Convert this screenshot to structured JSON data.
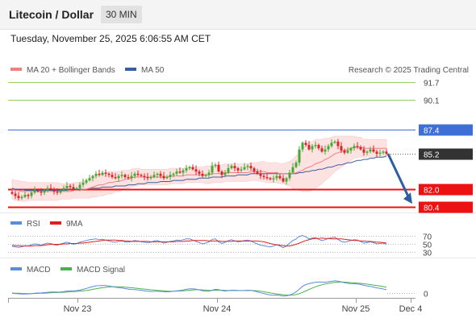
{
  "header": {
    "title": "Litecoin / Dollar",
    "timeframe": "30 MIN"
  },
  "timestamp": "Tuesday, November 25, 2025 6:06:55 AM CET",
  "legend": {
    "ma20": "MA 20 + Bollinger Bands",
    "ma50": "MA 50",
    "credit": "Research © 2025 Trading Central"
  },
  "colors": {
    "up": "#46a935",
    "down": "#d8252a",
    "ma20": "#f08080",
    "ma50": "#3a5fa0",
    "band": "#fde2e2",
    "green_level": "#9ccc65",
    "blue_level": "#3d6fd6",
    "red_level": "#ee1111",
    "arrow": "#2d5f9e",
    "rsi": "#5b8ddb",
    "rsi_ma": "#e02020",
    "macd": "#5b8ddb",
    "macd_signal": "#4caf50"
  },
  "chart_data": [
    {
      "type": "candlestick",
      "title": "Litecoin / Dollar",
      "interval": "30 MIN",
      "ylim": [
        79.9,
        92.4
      ],
      "x_ticks": [
        "Nov 23",
        "Nov 24",
        "Nov 25",
        "Dec 4"
      ],
      "levels": [
        {
          "value": "91.7",
          "kind": "resistance",
          "color": "#9ccc65"
        },
        {
          "value": "90.1",
          "kind": "resistance",
          "color": "#9ccc65"
        },
        {
          "value": "87.4",
          "kind": "resistance",
          "color": "#3d6fd6"
        },
        {
          "value": "85.2",
          "kind": "last",
          "color": "#333333"
        },
        {
          "value": "82.0",
          "kind": "support",
          "color": "#ee1111"
        },
        {
          "value": "80.4",
          "kind": "support",
          "color": "#ee1111"
        }
      ],
      "series": [
        {
          "name": "MA 20 + Bollinger Bands"
        },
        {
          "name": "MA 50"
        }
      ],
      "close": [
        81.6,
        81.4,
        81.2,
        81.3,
        81.5,
        81.4,
        81.7,
        81.9,
        81.8,
        81.7,
        81.9,
        82.1,
        82.0,
        81.8,
        81.7,
        81.9,
        82.1,
        82.3,
        82.2,
        82.0,
        82.1,
        82.4,
        82.6,
        82.8,
        83.0,
        83.2,
        83.4,
        83.3,
        83.5,
        83.4,
        83.3,
        83.1,
        83.0,
        83.2,
        83.3,
        83.1,
        83.0,
        83.2,
        83.4,
        83.3,
        83.2,
        83.1,
        83.0,
        83.1,
        83.3,
        83.4,
        83.2,
        83.0,
        83.1,
        83.3,
        83.4,
        83.6,
        83.5,
        83.7,
        83.9,
        84.0,
        83.8,
        83.6,
        83.4,
        83.2,
        83.3,
        83.5,
        84.1,
        84.2,
        83.6,
        83.3,
        83.5,
        83.9,
        84.1,
        83.9,
        83.7,
        83.8,
        84.0,
        84.1,
        83.9,
        83.6,
        83.4,
        83.2,
        83.1,
        83.0,
        82.9,
        83.0,
        83.2,
        83.0,
        82.7,
        83.0,
        83.5,
        84.0,
        84.4,
        85.6,
        86.2,
        86.0,
        85.6,
        85.9,
        86.0,
        85.7,
        85.4,
        85.6,
        85.9,
        86.2,
        86.3,
        85.9,
        85.5,
        85.3,
        85.5,
        85.7,
        85.9,
        85.8,
        85.6,
        85.3,
        85.4,
        85.6,
        85.4,
        85.2,
        85.3,
        85.4,
        85.2
      ],
      "ma20": [
        82.0,
        81.9,
        81.9,
        81.8,
        81.8,
        81.8,
        81.8,
        81.8,
        81.8,
        81.8,
        81.8,
        81.8,
        81.8,
        81.8,
        81.8,
        81.8,
        81.8,
        81.8,
        81.8,
        81.9,
        81.9,
        81.9,
        82.0,
        82.0,
        82.1,
        82.2,
        82.3,
        82.4,
        82.4,
        82.5,
        82.6,
        82.6,
        82.7,
        82.7,
        82.8,
        82.9,
        82.9,
        83.0,
        83.1,
        83.1,
        83.1,
        83.1,
        83.1,
        83.1,
        83.1,
        83.1,
        83.1,
        83.1,
        83.1,
        83.2,
        83.2,
        83.2,
        83.2,
        83.2,
        83.3,
        83.3,
        83.3,
        83.3,
        83.3,
        83.3,
        83.3,
        83.3,
        83.4,
        83.4,
        83.4,
        83.4,
        83.5,
        83.5,
        83.5,
        83.5,
        83.5,
        83.5,
        83.5,
        83.5,
        83.6,
        83.6,
        83.6,
        83.6,
        83.6,
        83.5,
        83.5,
        83.5,
        83.5,
        83.4,
        83.4,
        83.4,
        83.4,
        83.4,
        83.5,
        83.6,
        83.7,
        83.9,
        84.0,
        84.1,
        84.3,
        84.4,
        84.5,
        84.7,
        84.8,
        85.0,
        85.2,
        85.3,
        85.4,
        85.5,
        85.6,
        85.7,
        85.8,
        85.8,
        85.8,
        85.7,
        85.7,
        85.7,
        85.7,
        85.7,
        85.7,
        85.7,
        85.7
      ],
      "ma50": [
        82.1,
        82.0,
        82.0,
        82.0,
        81.9,
        81.9,
        81.9,
        81.9,
        81.9,
        81.9,
        81.9,
        81.9,
        81.9,
        81.9,
        81.9,
        81.9,
        81.9,
        81.9,
        82.0,
        82.0,
        82.0,
        82.0,
        82.0,
        82.0,
        82.1,
        82.1,
        82.1,
        82.1,
        82.2,
        82.2,
        82.2,
        82.2,
        82.3,
        82.3,
        82.3,
        82.3,
        82.4,
        82.4,
        82.4,
        82.5,
        82.5,
        82.5,
        82.6,
        82.6,
        82.6,
        82.6,
        82.7,
        82.7,
        82.7,
        82.7,
        82.8,
        82.8,
        82.8,
        82.8,
        82.9,
        82.9,
        82.9,
        82.9,
        83.0,
        83.0,
        83.0,
        83.0,
        83.1,
        83.1,
        83.1,
        83.1,
        83.2,
        83.2,
        83.2,
        83.2,
        83.3,
        83.3,
        83.3,
        83.3,
        83.4,
        83.4,
        83.4,
        83.4,
        83.4,
        83.4,
        83.4,
        83.4,
        83.4,
        83.4,
        83.4,
        83.4,
        83.4,
        83.4,
        83.4,
        83.5,
        83.5,
        83.6,
        83.6,
        83.7,
        83.7,
        83.8,
        83.8,
        83.9,
        84.0,
        84.0,
        84.1,
        84.2,
        84.2,
        84.3,
        84.4,
        84.4,
        84.5,
        84.6,
        84.6,
        84.7,
        84.7,
        84.8,
        84.8,
        84.9,
        84.9,
        84.9,
        85.0
      ],
      "bb_width": [
        0.9,
        0.9,
        0.9,
        0.9,
        0.9,
        0.8,
        0.8,
        0.8,
        0.8,
        0.8,
        0.8,
        0.8,
        0.8,
        0.8,
        0.8,
        0.7,
        0.7,
        0.7,
        0.7,
        0.7,
        0.7,
        0.7,
        0.8,
        0.8,
        0.9,
        0.9,
        1.0,
        1.0,
        1.0,
        1.0,
        1.0,
        1.0,
        0.9,
        0.9,
        0.9,
        0.8,
        0.8,
        0.8,
        0.8,
        0.8,
        0.7,
        0.7,
        0.7,
        0.7,
        0.7,
        0.7,
        0.7,
        0.7,
        0.7,
        0.7,
        0.7,
        0.7,
        0.7,
        0.7,
        0.7,
        0.7,
        0.7,
        0.7,
        0.7,
        0.7,
        0.8,
        0.8,
        0.8,
        0.8,
        0.8,
        0.8,
        0.8,
        0.8,
        0.8,
        0.8,
        0.8,
        0.8,
        0.8,
        0.8,
        0.8,
        0.8,
        0.8,
        0.9,
        0.9,
        0.9,
        0.9,
        0.9,
        0.9,
        0.9,
        0.9,
        1.0,
        1.1,
        1.3,
        1.5,
        1.7,
        1.9,
        2.1,
        2.2,
        2.2,
        2.2,
        2.1,
        2.0,
        1.9,
        1.8,
        1.7,
        1.6,
        1.5,
        1.4,
        1.3,
        1.2,
        1.1,
        1.0,
        0.9,
        0.9,
        0.8,
        0.8,
        0.8,
        0.8,
        0.8,
        0.8,
        0.8,
        0.8
      ]
    },
    {
      "type": "line",
      "title": "RSI",
      "ylim": [
        25,
        75
      ],
      "y_ticks": [
        "70",
        "50",
        "30"
      ],
      "series": [
        {
          "name": "RSI",
          "values": [
            44,
            43,
            42,
            43,
            46,
            45,
            48,
            50,
            49,
            47,
            50,
            52,
            51,
            48,
            47,
            50,
            52,
            54,
            52,
            49,
            51,
            54,
            56,
            58,
            60,
            61,
            62,
            60,
            61,
            59,
            57,
            55,
            54,
            56,
            57,
            55,
            54,
            56,
            58,
            57,
            55,
            54,
            53,
            54,
            57,
            58,
            55,
            52,
            54,
            56,
            57,
            59,
            58,
            60,
            62,
            62,
            59,
            56,
            53,
            50,
            52,
            55,
            61,
            62,
            55,
            51,
            54,
            58,
            60,
            57,
            55,
            56,
            58,
            59,
            57,
            53,
            50,
            47,
            46,
            44,
            43,
            45,
            48,
            45,
            41,
            45,
            52,
            58,
            62,
            68,
            70,
            67,
            62,
            64,
            65,
            61,
            58,
            60,
            63,
            65,
            66,
            61,
            56,
            54,
            56,
            58,
            60,
            59,
            56,
            52,
            53,
            55,
            53,
            50,
            51,
            52,
            49
          ]
        },
        {
          "name": "9MA",
          "values": [
            47,
            46,
            46,
            45,
            45,
            45,
            45,
            46,
            46,
            46,
            47,
            48,
            49,
            49,
            49,
            49,
            50,
            50,
            51,
            51,
            51,
            52,
            52,
            53,
            54,
            55,
            56,
            57,
            58,
            59,
            59,
            59,
            59,
            58,
            58,
            57,
            57,
            56,
            56,
            56,
            56,
            56,
            56,
            55,
            55,
            55,
            55,
            55,
            55,
            55,
            55,
            56,
            56,
            56,
            57,
            57,
            58,
            58,
            58,
            58,
            58,
            57,
            57,
            57,
            57,
            56,
            56,
            56,
            56,
            57,
            57,
            57,
            57,
            57,
            57,
            57,
            57,
            56,
            55,
            53,
            51,
            49,
            48,
            47,
            46,
            45,
            45,
            47,
            49,
            52,
            55,
            58,
            60,
            62,
            63,
            63,
            64,
            63,
            63,
            62,
            62,
            62,
            62,
            61,
            60,
            59,
            58,
            58,
            57,
            57,
            56,
            56,
            55,
            54,
            54,
            53,
            52
          ]
        }
      ]
    },
    {
      "type": "line",
      "title": "MACD",
      "ylim": [
        -0.4,
        1.25
      ],
      "y_ticks": [
        "0"
      ],
      "series": [
        {
          "name": "MACD",
          "values": [
            -0.05,
            -0.06,
            -0.08,
            -0.1,
            -0.1,
            -0.09,
            -0.07,
            -0.04,
            -0.02,
            -0.01,
            0.01,
            0.04,
            0.06,
            0.06,
            0.05,
            0.06,
            0.09,
            0.13,
            0.16,
            0.16,
            0.17,
            0.21,
            0.27,
            0.34,
            0.42,
            0.49,
            0.55,
            0.56,
            0.58,
            0.57,
            0.54,
            0.49,
            0.44,
            0.41,
            0.38,
            0.33,
            0.29,
            0.26,
            0.25,
            0.23,
            0.2,
            0.16,
            0.12,
            0.1,
            0.11,
            0.12,
            0.11,
            0.08,
            0.07,
            0.09,
            0.12,
            0.16,
            0.18,
            0.22,
            0.27,
            0.31,
            0.31,
            0.28,
            0.23,
            0.16,
            0.13,
            0.12,
            0.2,
            0.27,
            0.24,
            0.17,
            0.14,
            0.17,
            0.2,
            0.2,
            0.18,
            0.17,
            0.18,
            0.2,
            0.19,
            0.14,
            0.07,
            0.0,
            -0.06,
            -0.12,
            -0.17,
            -0.19,
            -0.18,
            -0.21,
            -0.26,
            -0.25,
            -0.18,
            -0.07,
            0.07,
            0.29,
            0.51,
            0.65,
            0.72,
            0.78,
            0.83,
            0.85,
            0.84,
            0.84,
            0.87,
            0.91,
            0.94,
            0.92,
            0.86,
            0.79,
            0.75,
            0.72,
            0.71,
            0.69,
            0.66,
            0.59,
            0.54,
            0.5,
            0.45,
            0.39,
            0.34,
            0.3,
            0.24
          ]
        },
        {
          "name": "MACD Signal",
          "values": [
            -0.02,
            -0.03,
            -0.04,
            -0.05,
            -0.06,
            -0.07,
            -0.07,
            -0.06,
            -0.05,
            -0.04,
            -0.03,
            -0.02,
            0.0,
            0.01,
            0.02,
            0.03,
            0.04,
            0.06,
            0.08,
            0.09,
            0.11,
            0.13,
            0.15,
            0.18,
            0.22,
            0.27,
            0.31,
            0.36,
            0.4,
            0.43,
            0.46,
            0.47,
            0.47,
            0.47,
            0.46,
            0.44,
            0.42,
            0.4,
            0.37,
            0.35,
            0.32,
            0.29,
            0.26,
            0.23,
            0.21,
            0.19,
            0.17,
            0.15,
            0.13,
            0.12,
            0.12,
            0.13,
            0.14,
            0.15,
            0.17,
            0.2,
            0.22,
            0.24,
            0.24,
            0.23,
            0.21,
            0.19,
            0.19,
            0.2,
            0.21,
            0.2,
            0.19,
            0.18,
            0.18,
            0.18,
            0.18,
            0.18,
            0.18,
            0.18,
            0.18,
            0.17,
            0.15,
            0.12,
            0.08,
            0.04,
            -0.01,
            -0.05,
            -0.09,
            -0.12,
            -0.15,
            -0.18,
            -0.19,
            -0.18,
            -0.14,
            -0.07,
            0.03,
            0.14,
            0.26,
            0.37,
            0.47,
            0.56,
            0.63,
            0.69,
            0.74,
            0.78,
            0.82,
            0.84,
            0.85,
            0.84,
            0.82,
            0.8,
            0.78,
            0.76,
            0.74,
            0.71,
            0.68,
            0.65,
            0.61,
            0.57,
            0.53,
            0.49,
            0.44
          ]
        }
      ]
    }
  ]
}
